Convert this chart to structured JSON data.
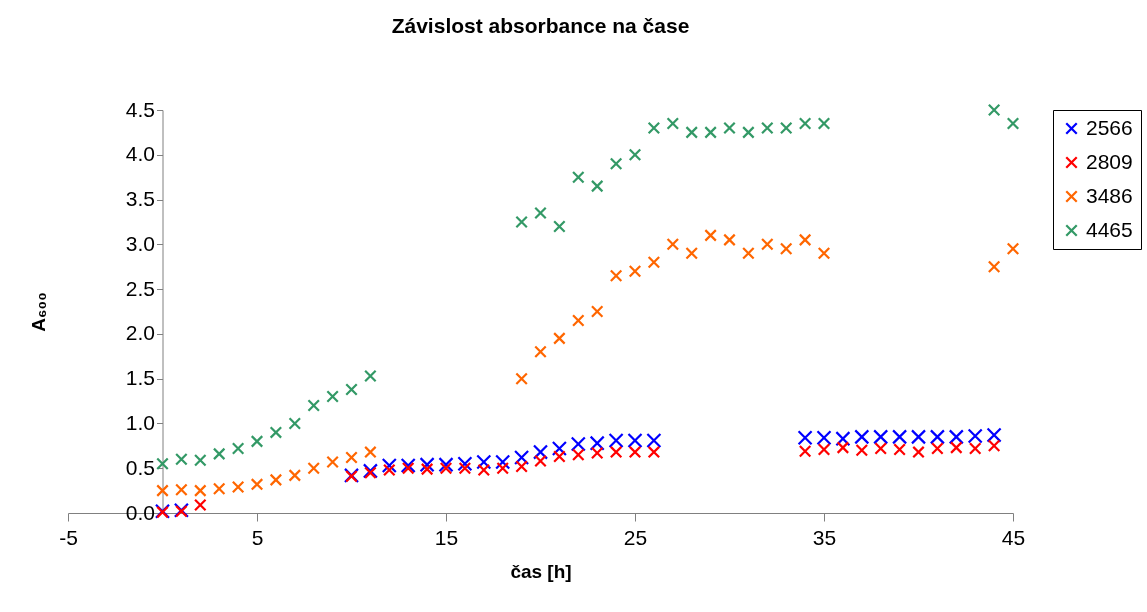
{
  "chart_data": {
    "type": "scatter",
    "title": "Závislost absorbance na čase",
    "xlabel": "čas [h]",
    "ylabel": "A₆₀₀",
    "xlim": [
      -5,
      45
    ],
    "xticks": [
      -5,
      5,
      15,
      25,
      35,
      45
    ],
    "ylim": [
      0,
      4.5
    ],
    "yticks": [
      {
        "value": 0,
        "label": "0.0"
      },
      {
        "value": 0.5,
        "label": "0.5"
      },
      {
        "value": 1,
        "label": "1.0"
      },
      {
        "value": 1.5,
        "label": "1.5"
      },
      {
        "value": 2,
        "label": "2.0"
      },
      {
        "value": 2.5,
        "label": "2.5"
      },
      {
        "value": 3,
        "label": "3.0"
      },
      {
        "value": 3.5,
        "label": "3.5"
      },
      {
        "value": 4,
        "label": "4.0"
      },
      {
        "value": 4.5,
        "label": "4.5"
      }
    ],
    "marker": "cross",
    "legend": "right",
    "grid": false,
    "series": [
      {
        "name": "2566",
        "color": "#0000ff",
        "x": [
          0,
          1,
          10,
          11,
          12,
          13,
          14,
          15,
          16,
          17,
          18,
          19,
          20,
          21,
          22,
          23,
          24,
          25,
          26,
          34,
          35,
          36,
          37,
          38,
          39,
          40,
          41,
          42,
          43,
          44
        ],
        "values": [
          0.02,
          0.03,
          0.42,
          0.47,
          0.53,
          0.53,
          0.54,
          0.54,
          0.55,
          0.57,
          0.57,
          0.62,
          0.68,
          0.72,
          0.77,
          0.78,
          0.81,
          0.81,
          0.81,
          0.84,
          0.84,
          0.83,
          0.85,
          0.85,
          0.85,
          0.85,
          0.85,
          0.85,
          0.86,
          0.87
        ]
      },
      {
        "name": "2809",
        "color": "#ff0000",
        "x": [
          0,
          1,
          2,
          10,
          11,
          12,
          13,
          14,
          15,
          16,
          17,
          18,
          19,
          20,
          21,
          22,
          23,
          24,
          25,
          26,
          34,
          35,
          36,
          37,
          38,
          39,
          40,
          41,
          42,
          43,
          44
        ],
        "values": [
          0.01,
          0.02,
          0.09,
          0.41,
          0.45,
          0.48,
          0.5,
          0.49,
          0.5,
          0.5,
          0.48,
          0.5,
          0.52,
          0.58,
          0.63,
          0.65,
          0.67,
          0.68,
          0.68,
          0.68,
          0.69,
          0.71,
          0.73,
          0.7,
          0.72,
          0.71,
          0.68,
          0.72,
          0.73,
          0.72,
          0.75
        ]
      },
      {
        "name": "3486",
        "color": "#ff6600",
        "x": [
          0,
          1,
          2,
          3,
          4,
          5,
          6,
          7,
          8,
          9,
          10,
          11,
          19,
          20,
          21,
          22,
          23,
          24,
          25,
          26,
          27,
          28,
          29,
          30,
          31,
          32,
          33,
          34,
          35,
          44,
          45
        ],
        "values": [
          0.25,
          0.26,
          0.25,
          0.27,
          0.29,
          0.32,
          0.37,
          0.42,
          0.5,
          0.57,
          0.62,
          0.68,
          1.5,
          1.8,
          1.95,
          2.15,
          2.25,
          2.65,
          2.7,
          2.8,
          3.0,
          2.9,
          3.1,
          3.05,
          2.9,
          3.0,
          2.95,
          3.05,
          2.9,
          2.75,
          2.95
        ]
      },
      {
        "name": "4465",
        "color": "#339966",
        "x": [
          0,
          1,
          2,
          3,
          4,
          5,
          6,
          7,
          8,
          9,
          10,
          11,
          19,
          20,
          21,
          22,
          23,
          24,
          25,
          26,
          27,
          28,
          29,
          30,
          31,
          32,
          33,
          34,
          35,
          44,
          45
        ],
        "values": [
          0.55,
          0.6,
          0.59,
          0.66,
          0.72,
          0.8,
          0.9,
          1.0,
          1.2,
          1.3,
          1.38,
          1.53,
          3.25,
          3.35,
          3.2,
          3.75,
          3.65,
          3.9,
          4.0,
          4.3,
          4.35,
          4.25,
          4.25,
          4.3,
          4.25,
          4.3,
          4.3,
          4.35,
          4.35,
          4.5,
          4.35
        ]
      }
    ]
  }
}
